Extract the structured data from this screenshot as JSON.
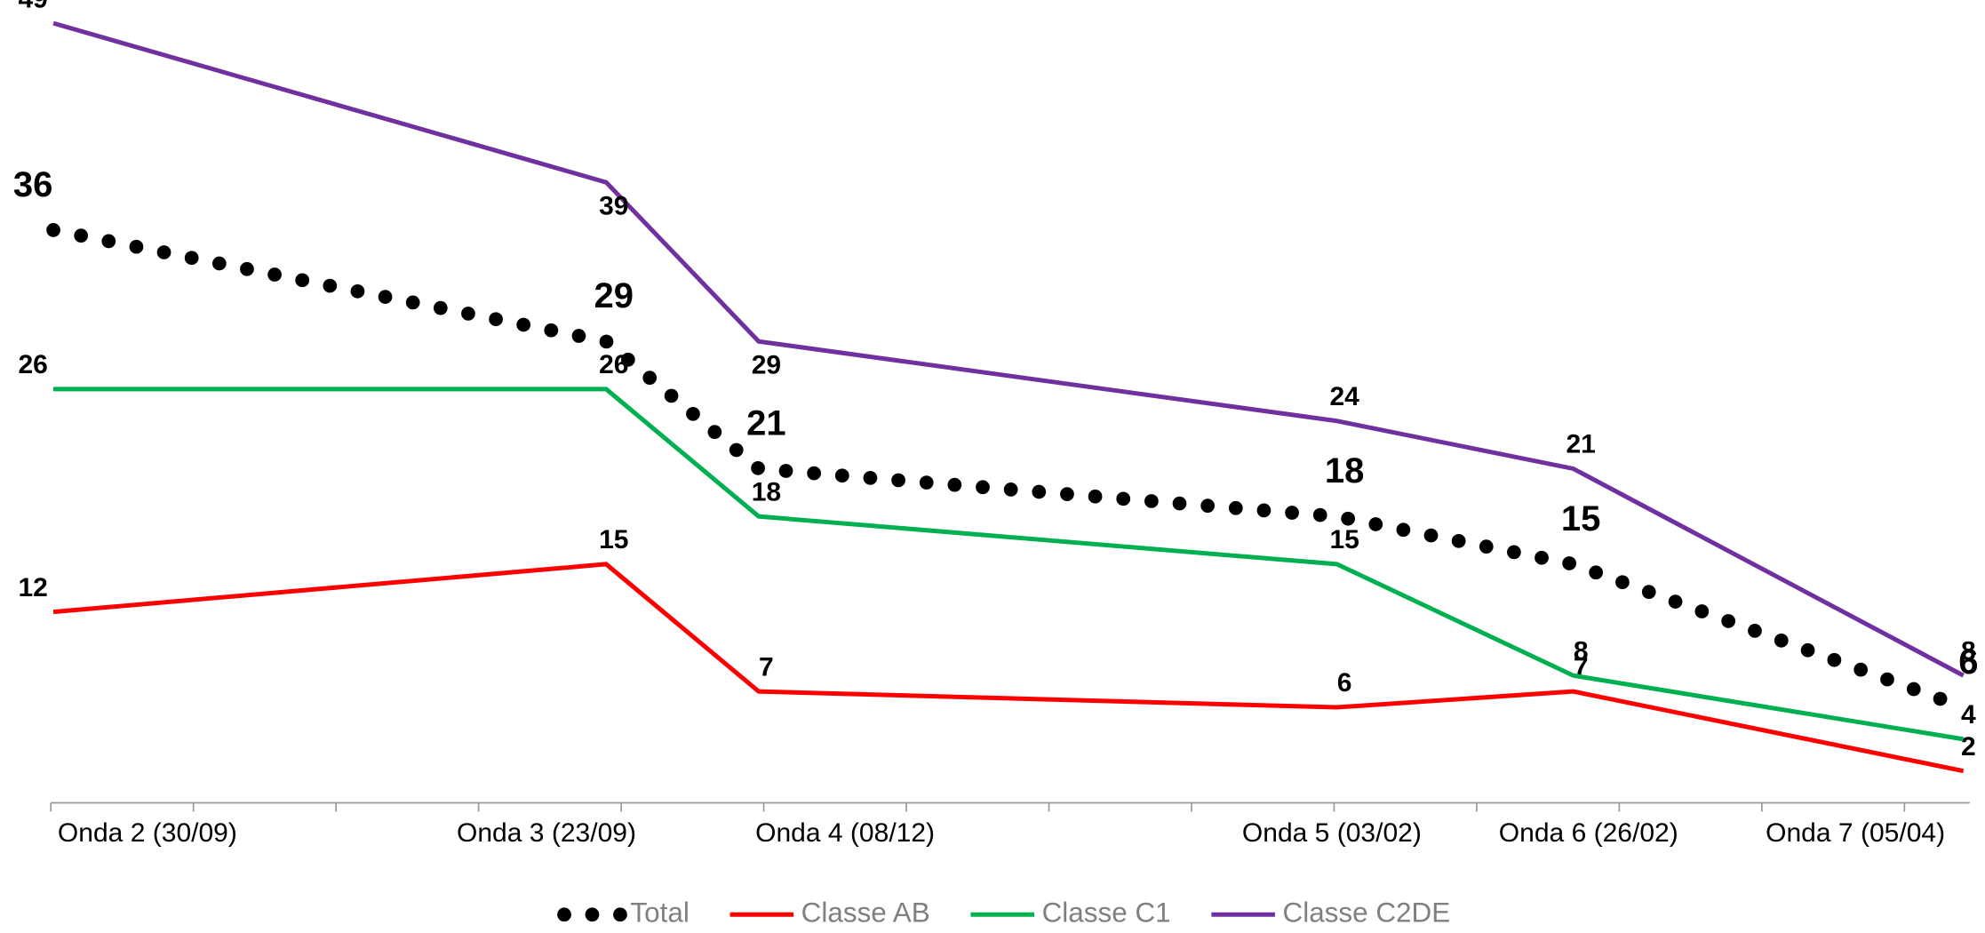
{
  "chart_data": {
    "type": "line",
    "categories": [
      "Onda 2 (30/09)",
      "Onda 3 (23/09)",
      "Onda 4 (08/12)",
      "Onda 5 (03/02)",
      "Onda 6  (26/02)",
      "Onda 7  (05/04)"
    ],
    "series": [
      {
        "name": "Total",
        "color": "#000000",
        "values": [
          36,
          29,
          21,
          18,
          15,
          6
        ]
      },
      {
        "name": "Classe AB",
        "color": "#ff0000",
        "values": [
          12,
          15,
          7,
          6,
          7,
          2
        ]
      },
      {
        "name": "Classe C1",
        "color": "#00b050",
        "values": [
          26,
          26,
          18,
          15,
          8,
          4
        ]
      },
      {
        "name": "Classe C2DE",
        "color": "#7030a0",
        "values": [
          49,
          39,
          29,
          24,
          21,
          8
        ]
      }
    ],
    "ylim": [
      0,
      49.5
    ],
    "legend": "bottom"
  }
}
